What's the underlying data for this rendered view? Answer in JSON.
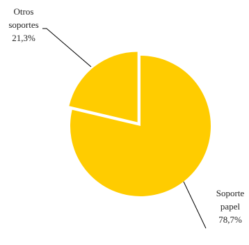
{
  "chart_data": {
    "type": "pie",
    "slices": [
      {
        "label_lines": [
          "Soporte",
          "papel",
          "78,7%"
        ],
        "value": 78.7,
        "color": "#FFCC00"
      },
      {
        "label_lines": [
          "Otros",
          "soportes",
          "21,3%"
        ],
        "value": 21.3,
        "color": "#FFCC00",
        "exploded": true
      }
    ],
    "legend": "none"
  }
}
